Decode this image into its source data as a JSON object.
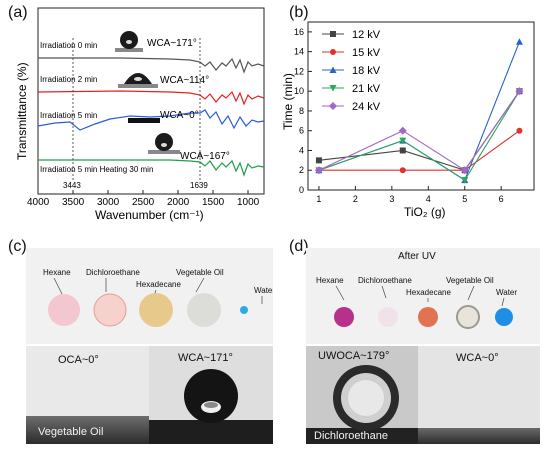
{
  "panel_a": {
    "label": "(a)",
    "ylabel": "Transmittance (%)",
    "xlabel": "Wavenumber (cm⁻¹)",
    "xticks": [
      "4000",
      "3500",
      "3000",
      "2500",
      "2000",
      "1500",
      "1000"
    ],
    "curve_labels": [
      "Irradiation 0 min",
      "Irradiation 2 min",
      "Irradiation 5 min",
      "Irradiation 5 min Heating 30 min"
    ],
    "wca_labels": [
      "WCA~171°",
      "WCA~114°",
      "WCA~0°",
      "WCA~167°"
    ],
    "peak_labels": [
      "3443",
      "1639"
    ],
    "colors": [
      "#555555",
      "#e02424",
      "#2a5bd7",
      "#1f9e4a"
    ]
  },
  "panel_b": {
    "label": "(b)",
    "chart_data": {
      "type": "line",
      "xlabel": "TiO₂ (g)",
      "ylabel": "Time (min)",
      "x": [
        1,
        3.3,
        5,
        6.5
      ],
      "xlim": [
        0.7,
        6.9
      ],
      "ylim": [
        0,
        17
      ],
      "xticks": [
        "1",
        "2",
        "3",
        "4",
        "5",
        "6"
      ],
      "yticks": [
        "0",
        "2",
        "4",
        "6",
        "8",
        "10",
        "12",
        "14",
        "16"
      ],
      "series": [
        {
          "name": "12 kV",
          "color": "#444444",
          "marker": "square",
          "values": [
            3,
            4,
            2,
            10
          ]
        },
        {
          "name": "15 kV",
          "color": "#e03030",
          "marker": "circle",
          "values": [
            2,
            2,
            2,
            6
          ]
        },
        {
          "name": "18 kV",
          "color": "#2a62c9",
          "marker": "triangle-up",
          "values": [
            2,
            5,
            1,
            15
          ]
        },
        {
          "name": "21 kV",
          "color": "#2aa85a",
          "marker": "triangle-down",
          "values": [
            2,
            5,
            1,
            10
          ]
        },
        {
          "name": "24 kV",
          "color": "#a066c8",
          "marker": "diamond",
          "values": [
            2,
            6,
            2,
            10
          ]
        }
      ]
    }
  },
  "panel_c": {
    "label": "(c)",
    "oils": [
      "Hexane",
      "Dichloroethane",
      "Hexadecane",
      "Vegetable Oil",
      "Water"
    ],
    "oca_label": "OCA~0°",
    "wca_label": "WCA~171°",
    "substrate_label": "Vegetable Oil"
  },
  "panel_d": {
    "label": "(d)",
    "title": "After UV",
    "oils": [
      "Hexane",
      "Dichloroethane",
      "Hexadecane",
      "Vegetable Oil",
      "Water"
    ],
    "uwoca_label": "UWOCA~179°",
    "wca_label": "WCA~0°",
    "substrate_label": "Dichloroethane"
  }
}
